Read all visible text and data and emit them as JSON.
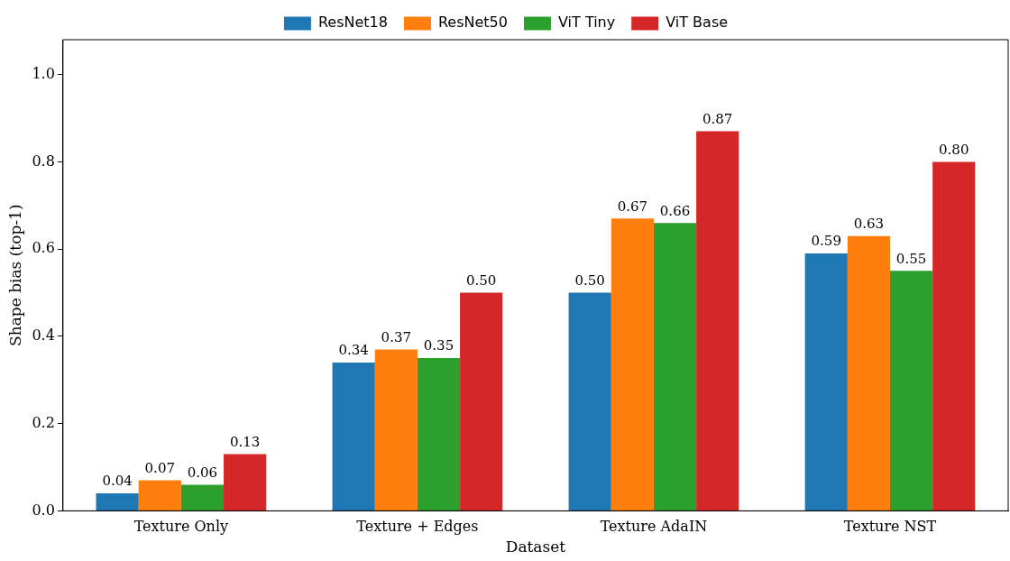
{
  "chart_data": {
    "type": "bar",
    "xlabel": "Dataset",
    "ylabel": "Shape bias (top-1)",
    "categories": [
      "Texture Only",
      "Texture + Edges",
      "Texture AdaIN",
      "Texture NST"
    ],
    "series": [
      {
        "name": "ResNet18",
        "color": "#1f77b4",
        "values": [
          0.04,
          0.34,
          0.5,
          0.59
        ],
        "value_labels": [
          "0.04",
          "0.34",
          "0.50",
          "0.59"
        ]
      },
      {
        "name": "ResNet50",
        "color": "#ff7f0e",
        "values": [
          0.07,
          0.37,
          0.67,
          0.63
        ],
        "value_labels": [
          "0.07",
          "0.37",
          "0.67",
          "0.63"
        ]
      },
      {
        "name": "ViT Tiny",
        "color": "#2ca02c",
        "values": [
          0.06,
          0.35,
          0.66,
          0.55
        ],
        "value_labels": [
          "0.06",
          "0.35",
          "0.66",
          "0.55"
        ]
      },
      {
        "name": "ViT Base",
        "color": "#d62728",
        "values": [
          0.13,
          0.5,
          0.87,
          0.8
        ],
        "value_labels": [
          "0.13",
          "0.50",
          "0.87",
          "0.80"
        ]
      }
    ],
    "ylim": [
      0,
      1.08
    ],
    "yticks": [
      {
        "value": 0,
        "label": "0.0"
      },
      0.2,
      0.4,
      0.6,
      0.8,
      {
        "value": 1,
        "label": "1.0"
      }
    ],
    "grid": false,
    "legend": "top"
  }
}
